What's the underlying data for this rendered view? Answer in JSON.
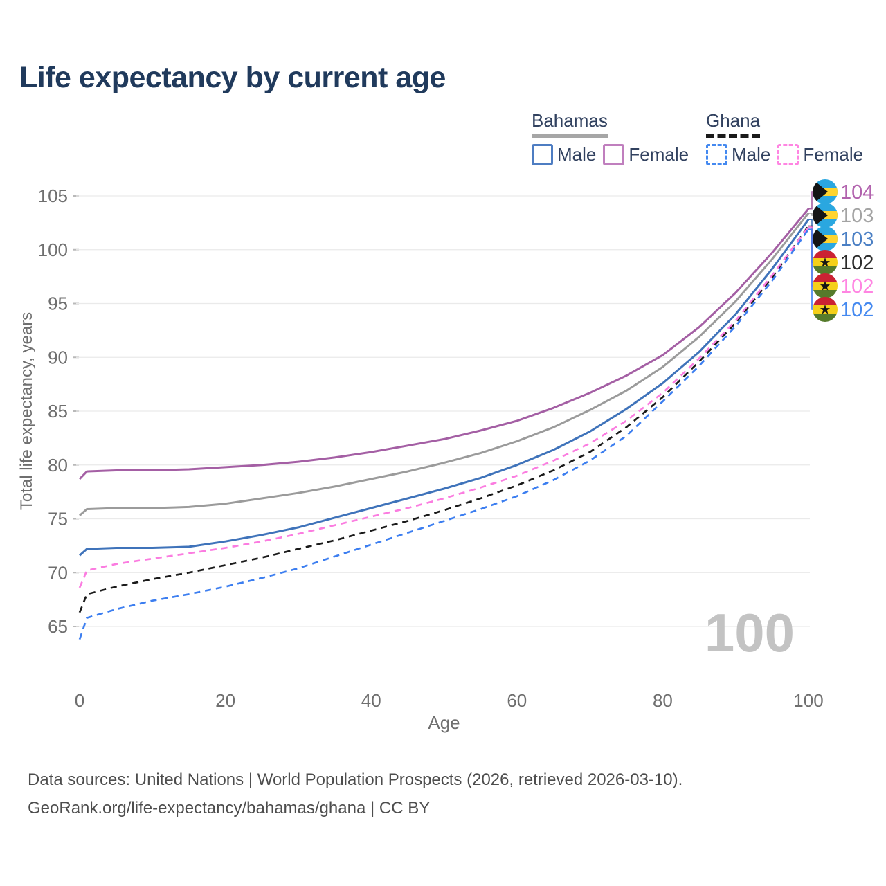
{
  "header": {
    "title": "Life expectancy by current age"
  },
  "colors": {
    "title": "#203a5c",
    "legend_text": "#31415f",
    "axis_text": "#6f6f6f",
    "grid": "#eaeaea",
    "tick_stub": "#b9b9b9",
    "footer_text": "#4d4d4d",
    "watermark": "#c3c3c3"
  },
  "legend": {
    "groups": [
      {
        "country": "Bahamas",
        "underline_color": "#a6a6a6",
        "underline_style": "solid",
        "items": [
          {
            "label": "Male",
            "color": "#4e7dc2",
            "dash": "solid"
          },
          {
            "label": "Female",
            "color": "#c07fbe",
            "dash": "solid"
          }
        ]
      },
      {
        "country": "Ghana",
        "underline_color": "#1a1a1a",
        "underline_style": "dashed",
        "items": [
          {
            "label": "Male",
            "color": "#4489f0",
            "dash": "dashed"
          },
          {
            "label": "Female",
            "color": "#ff85e2",
            "dash": "dashed"
          }
        ]
      }
    ]
  },
  "icons": {
    "bahamas_flag": {
      "blue": "#2aa7e0",
      "yellow": "#ffd42e",
      "black": "#151515"
    },
    "ghana_flag": {
      "red": "#cb2233",
      "yellow": "#f5d019",
      "green": "#557b2b",
      "star": "#151515"
    }
  },
  "chart_data": {
    "type": "line",
    "title": "Life expectancy by current age",
    "xlabel": "Age",
    "ylabel": "Total life expectancy, years",
    "xlim": [
      0,
      100
    ],
    "ylim": [
      65,
      105
    ],
    "xticks": [
      0,
      20,
      40,
      60,
      80,
      100
    ],
    "yticks": [
      65,
      70,
      75,
      80,
      85,
      90,
      95,
      100,
      105
    ],
    "grid": "horizontal",
    "legend_position": "top-right",
    "watermark": "100",
    "x": [
      0,
      1,
      5,
      10,
      15,
      20,
      25,
      30,
      35,
      40,
      45,
      50,
      55,
      60,
      65,
      70,
      75,
      80,
      85,
      90,
      95,
      100
    ],
    "series": [
      {
        "id": "bahamas-female",
        "name": "Bahamas Female",
        "country": "Bahamas",
        "sex": "Female",
        "color": "#a45fa4",
        "dash": false,
        "flag": "bahamas",
        "end_label": "104",
        "end_label_color": "#b263ae",
        "values": [
          78.7,
          79.4,
          79.5,
          79.5,
          79.6,
          79.8,
          80.0,
          80.3,
          80.7,
          81.2,
          81.8,
          82.4,
          83.2,
          84.1,
          85.3,
          86.7,
          88.3,
          90.2,
          92.8,
          96.0,
          99.7,
          103.8
        ]
      },
      {
        "id": "bahamas-all",
        "name": "Bahamas (all)",
        "country": "Bahamas",
        "sex": "Both sexes",
        "color": "#9b9b9b",
        "dash": false,
        "flag": "bahamas",
        "end_label": "103",
        "end_label_color": "#a3a3a3",
        "values": [
          75.3,
          75.9,
          76.0,
          76.0,
          76.1,
          76.4,
          76.9,
          77.4,
          78.0,
          78.7,
          79.4,
          80.2,
          81.1,
          82.2,
          83.5,
          85.1,
          86.9,
          89.1,
          91.9,
          95.2,
          99.1,
          103.4
        ]
      },
      {
        "id": "bahamas-male",
        "name": "Bahamas Male",
        "country": "Bahamas",
        "sex": "Male",
        "color": "#3f73ba",
        "dash": false,
        "flag": "bahamas",
        "end_label": "103",
        "end_label_color": "#4a7fc4",
        "values": [
          71.6,
          72.2,
          72.3,
          72.3,
          72.4,
          72.9,
          73.5,
          74.2,
          75.1,
          76.0,
          76.9,
          77.8,
          78.8,
          80.0,
          81.4,
          83.1,
          85.2,
          87.6,
          90.5,
          94.0,
          98.2,
          102.8
        ]
      },
      {
        "id": "ghana-all",
        "name": "Ghana (all)",
        "country": "Ghana",
        "sex": "Both sexes",
        "color": "#1a1a1a",
        "dash": true,
        "flag": "ghana",
        "end_label": "102",
        "end_label_color": "#2b2b2b",
        "values": [
          66.3,
          68.0,
          68.7,
          69.4,
          70.0,
          70.7,
          71.4,
          72.2,
          73.0,
          73.9,
          74.8,
          75.8,
          76.9,
          78.1,
          79.5,
          81.2,
          83.5,
          86.3,
          89.6,
          93.2,
          97.4,
          102.2
        ]
      },
      {
        "id": "ghana-female",
        "name": "Ghana Female",
        "country": "Ghana",
        "sex": "Female",
        "color": "#fb7ce0",
        "dash": true,
        "flag": "ghana",
        "end_label": "102",
        "end_label_color": "#ff85e2",
        "values": [
          68.6,
          70.2,
          70.8,
          71.3,
          71.8,
          72.3,
          72.9,
          73.6,
          74.4,
          75.2,
          76.0,
          76.9,
          77.9,
          79.0,
          80.4,
          82.0,
          84.1,
          86.7,
          89.9,
          93.4,
          97.6,
          102.1
        ]
      },
      {
        "id": "ghana-male",
        "name": "Ghana Male",
        "country": "Ghana",
        "sex": "Male",
        "color": "#3c7ef0",
        "dash": true,
        "flag": "ghana",
        "end_label": "102",
        "end_label_color": "#4489f0",
        "values": [
          63.8,
          65.8,
          66.6,
          67.4,
          68.0,
          68.7,
          69.5,
          70.4,
          71.5,
          72.6,
          73.7,
          74.8,
          75.9,
          77.1,
          78.6,
          80.4,
          82.7,
          85.9,
          89.2,
          92.9,
          97.1,
          101.9
        ]
      }
    ]
  },
  "footer": {
    "line1": "Data sources: United Nations | World Population Prospects (2026, retrieved 2026-03-10).",
    "line2": "GeoRank.org/life-expectancy/bahamas/ghana | CC BY"
  }
}
